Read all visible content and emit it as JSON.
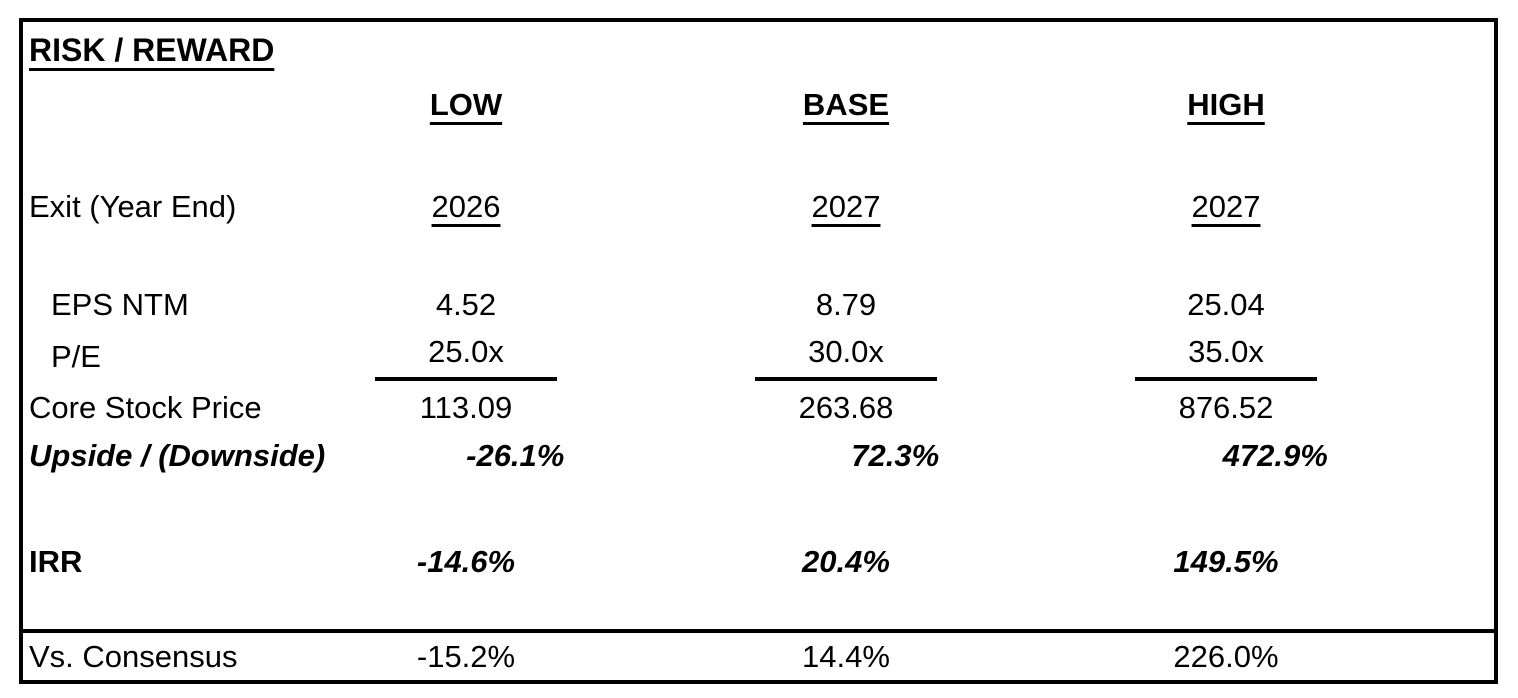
{
  "table": {
    "title": "RISK / REWARD",
    "columns": {
      "low": "LOW",
      "base": "BASE",
      "high": "HIGH"
    },
    "rows": {
      "exit": {
        "label": "Exit (Year End)",
        "values": [
          "2026",
          "2027",
          "2027"
        ]
      },
      "eps": {
        "label": "EPS NTM",
        "values": [
          "4.52",
          "8.79",
          "25.04"
        ]
      },
      "pe": {
        "label": "P/E",
        "values": [
          "25.0x",
          "30.0x",
          "35.0x"
        ]
      },
      "core": {
        "label": "Core Stock Price",
        "values": [
          "113.09",
          "263.68",
          "876.52"
        ]
      },
      "upside": {
        "label": "Upside / (Downside)",
        "values": [
          "-26.1%",
          "72.3%",
          "472.9%"
        ]
      },
      "irr": {
        "label": "IRR",
        "values": [
          "-14.6%",
          "20.4%",
          "149.5%"
        ]
      },
      "consensus": {
        "label": "Vs. Consensus",
        "values": [
          "-15.2%",
          "14.4%",
          "226.0%"
        ]
      }
    },
    "colors": {
      "border": "#000000",
      "text": "#000000",
      "background": "#ffffff"
    }
  }
}
